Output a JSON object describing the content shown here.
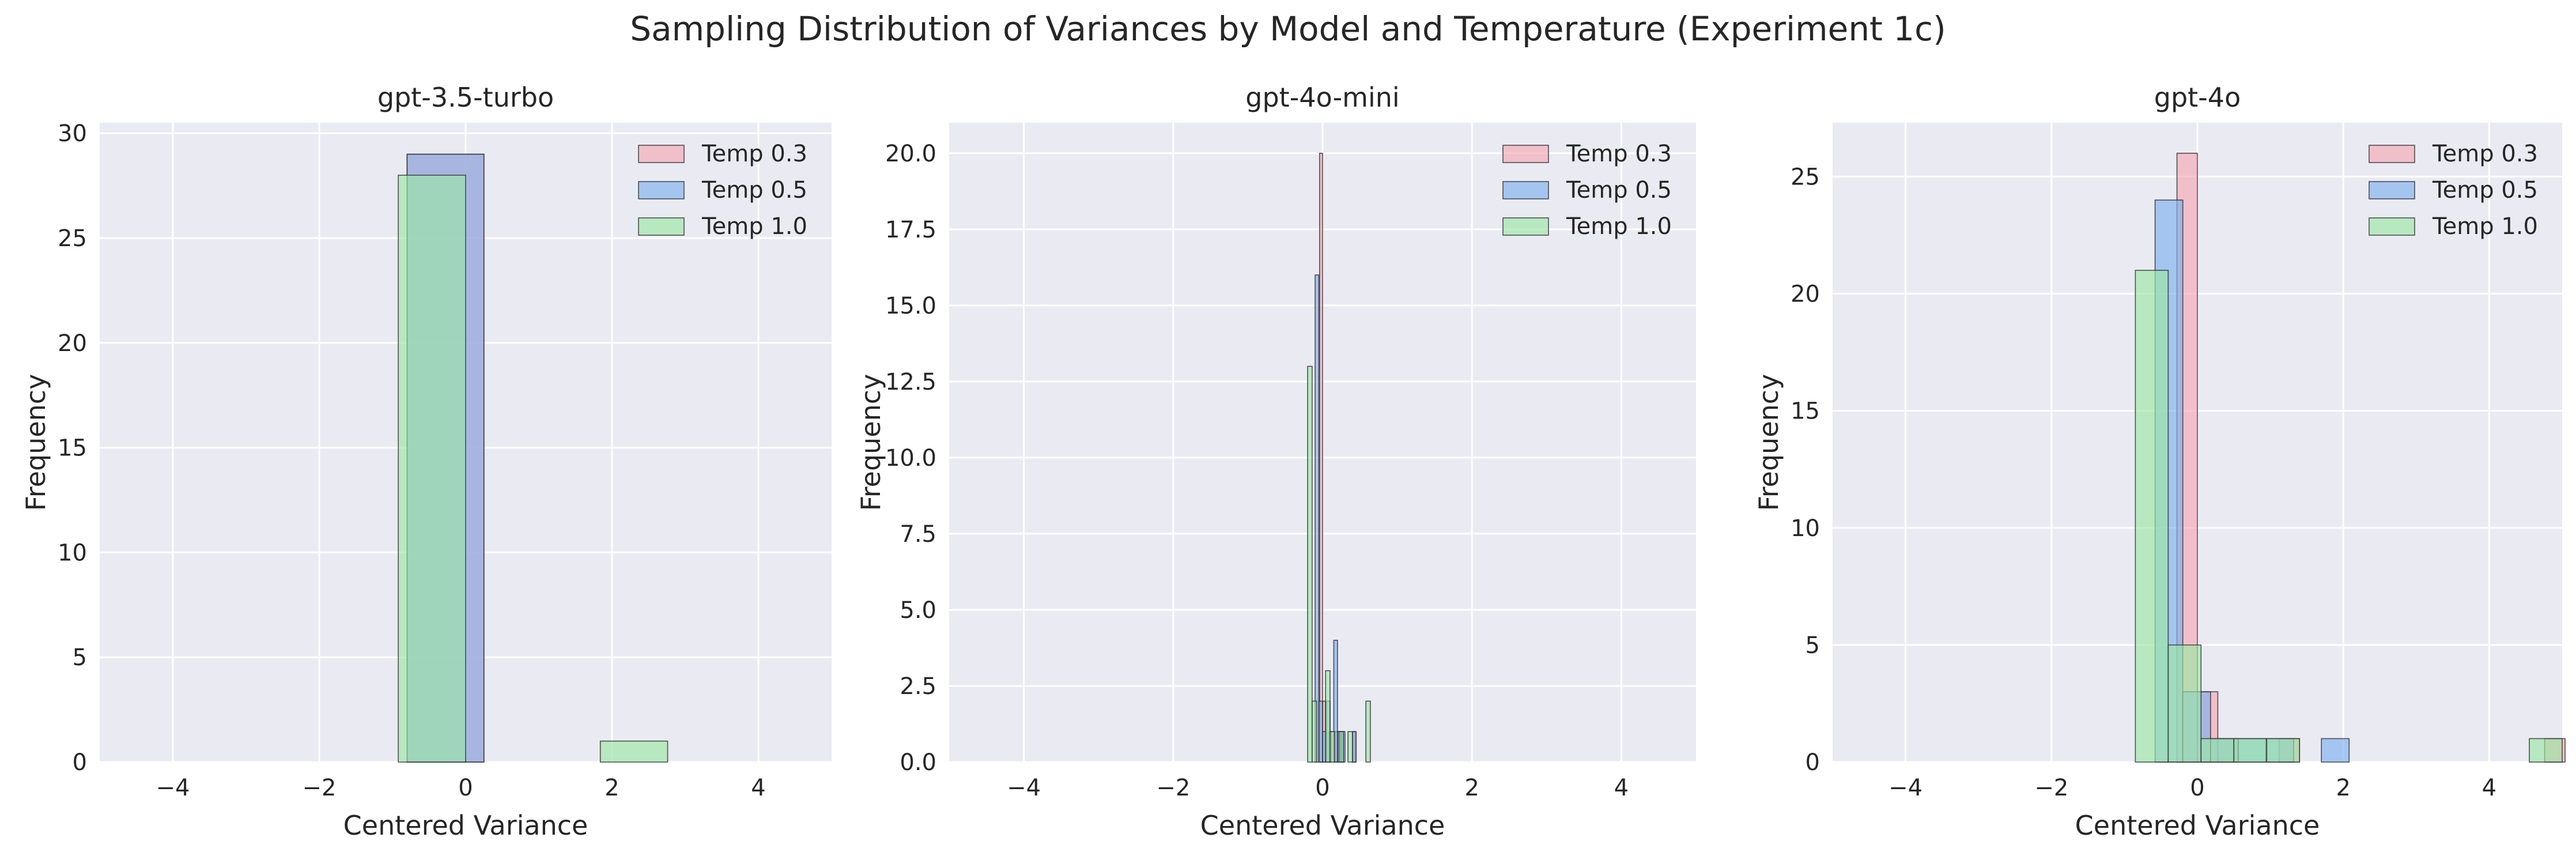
{
  "figure": {
    "title": "Sampling Distribution of Variances by Model and Temperature (Experiment 1c)"
  },
  "colors": {
    "plot_background": "#eaeaf2",
    "grid": "#ffffff",
    "edge": "#2b2b2b",
    "Temp 0.3": "#f4a8b2",
    "Temp 0.5": "#7eb0ee",
    "Temp 1.0": "#9be7a4"
  },
  "chart_data": [
    {
      "type": "bar",
      "subtype": "histogram",
      "title": "gpt-3.5-turbo",
      "xlabel": "Centered Variance",
      "ylabel": "Frequency",
      "xlim": [
        -5,
        5
      ],
      "ylim": [
        0,
        30.5
      ],
      "xticks": [
        -4,
        -2,
        0,
        2,
        4
      ],
      "yticks": [
        0,
        5,
        10,
        15,
        20,
        25,
        30
      ],
      "grid": true,
      "legend": "top-right",
      "series": [
        {
          "name": "Temp 0.3",
          "bins": [
            {
              "x0": -0.8,
              "x1": 0.25,
              "count": 29
            }
          ]
        },
        {
          "name": "Temp 0.5",
          "bins": [
            {
              "x0": -0.8,
              "x1": 0.25,
              "count": 29
            }
          ]
        },
        {
          "name": "Temp 1.0",
          "bins": [
            {
              "x0": -0.92,
              "x1": 0.0,
              "count": 28
            },
            {
              "x0": 1.84,
              "x1": 2.76,
              "count": 1
            }
          ]
        }
      ]
    },
    {
      "type": "bar",
      "subtype": "histogram",
      "title": "gpt-4o-mini",
      "xlabel": "Centered Variance",
      "ylabel": "Frequency",
      "xlim": [
        -5,
        5
      ],
      "ylim": [
        0,
        21
      ],
      "xticks": [
        -4,
        -2,
        0,
        2,
        4
      ],
      "yticks": [
        "0.0",
        "2.5",
        "5.0",
        "7.5",
        "10.0",
        "12.5",
        "15.0",
        "17.5",
        "20.0"
      ],
      "grid": true,
      "legend": "top-right",
      "series": [
        {
          "name": "Temp 0.3",
          "bins": [
            {
              "x0": -0.04,
              "x1": 0.0,
              "count": 20
            },
            {
              "x0": 0.0,
              "x1": 0.04,
              "count": 2
            },
            {
              "x0": 0.08,
              "x1": 0.12,
              "count": 1
            },
            {
              "x0": 0.16,
              "x1": 0.2,
              "count": 1
            },
            {
              "x0": 0.2,
              "x1": 0.24,
              "count": 1
            },
            {
              "x0": 0.24,
              "x1": 0.28,
              "count": 1
            },
            {
              "x0": 0.4,
              "x1": 0.44,
              "count": 1
            }
          ]
        },
        {
          "name": "Temp 0.5",
          "bins": [
            {
              "x0": -0.1,
              "x1": -0.05,
              "count": 16
            },
            {
              "x0": -0.05,
              "x1": 0.0,
              "count": 2
            },
            {
              "x0": 0.0,
              "x1": 0.05,
              "count": 1
            },
            {
              "x0": 0.05,
              "x1": 0.1,
              "count": 2
            },
            {
              "x0": 0.15,
              "x1": 0.2,
              "count": 4
            },
            {
              "x0": 0.2,
              "x1": 0.25,
              "count": 1
            },
            {
              "x0": 0.25,
              "x1": 0.3,
              "count": 1
            },
            {
              "x0": 0.4,
              "x1": 0.45,
              "count": 1
            }
          ]
        },
        {
          "name": "Temp 1.0",
          "bins": [
            {
              "x0": -0.2,
              "x1": -0.14,
              "count": 13
            },
            {
              "x0": -0.14,
              "x1": -0.08,
              "count": 2
            },
            {
              "x0": 0.04,
              "x1": 0.1,
              "count": 3
            },
            {
              "x0": 0.1,
              "x1": 0.16,
              "count": 1
            },
            {
              "x0": 0.22,
              "x1": 0.28,
              "count": 1
            },
            {
              "x0": 0.34,
              "x1": 0.4,
              "count": 1
            },
            {
              "x0": 0.58,
              "x1": 0.64,
              "count": 2
            }
          ]
        }
      ]
    },
    {
      "type": "bar",
      "subtype": "histogram",
      "title": "gpt-4o",
      "xlabel": "Centered Variance",
      "ylabel": "Frequency",
      "xlim": [
        -5,
        5
      ],
      "ylim": [
        0,
        27.3
      ],
      "xticks": [
        -4,
        -2,
        0,
        2,
        4
      ],
      "yticks": [
        0,
        5,
        10,
        15,
        20,
        25
      ],
      "grid": true,
      "legend": "top-right",
      "series": [
        {
          "name": "Temp 0.3",
          "bins": [
            {
              "x0": -0.28,
              "x1": 0.0,
              "count": 26
            },
            {
              "x0": 0.0,
              "x1": 0.28,
              "count": 3
            },
            {
              "x0": 0.28,
              "x1": 0.56,
              "count": 1
            },
            {
              "x0": 1.12,
              "x1": 1.4,
              "count": 1
            },
            {
              "x0": 4.76,
              "x1": 5.04,
              "count": 1
            }
          ]
        },
        {
          "name": "Temp 0.5",
          "bins": [
            {
              "x0": -0.58,
              "x1": -0.2,
              "count": 24
            },
            {
              "x0": -0.2,
              "x1": 0.18,
              "count": 3
            },
            {
              "x0": 0.18,
              "x1": 0.56,
              "count": 1
            },
            {
              "x0": 0.56,
              "x1": 0.94,
              "count": 1
            },
            {
              "x0": 0.94,
              "x1": 1.32,
              "count": 1
            },
            {
              "x0": 1.7,
              "x1": 2.08,
              "count": 1
            }
          ]
        },
        {
          "name": "Temp 1.0",
          "bins": [
            {
              "x0": -0.85,
              "x1": -0.4,
              "count": 21
            },
            {
              "x0": -0.4,
              "x1": 0.05,
              "count": 5
            },
            {
              "x0": 0.05,
              "x1": 0.5,
              "count": 1
            },
            {
              "x0": 0.5,
              "x1": 0.95,
              "count": 1
            },
            {
              "x0": 0.95,
              "x1": 1.4,
              "count": 1
            },
            {
              "x0": 4.55,
              "x1": 5.0,
              "count": 1
            }
          ]
        }
      ]
    }
  ]
}
